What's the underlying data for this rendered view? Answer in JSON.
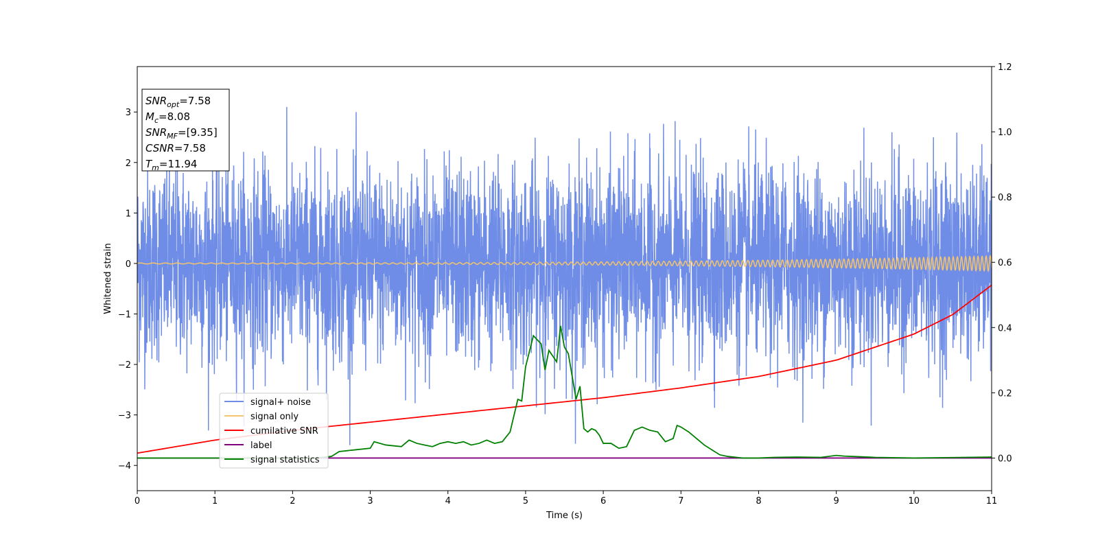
{
  "chart_data": {
    "type": "line",
    "title": "",
    "xlabel": "Time (s)",
    "ylabel": "Whitened strain",
    "xlim": [
      0,
      11
    ],
    "ylim_left": [
      -4.5,
      3.9
    ],
    "ylim_right": [
      -0.1,
      1.2
    ],
    "x_ticks": [
      "0",
      "1",
      "2",
      "3",
      "4",
      "5",
      "6",
      "7",
      "8",
      "9",
      "10",
      "11"
    ],
    "y_ticks_left": [
      "3",
      "2",
      "1",
      "0",
      "−1",
      "−2",
      "−3",
      "−4"
    ],
    "y_ticks_right": [
      "1.2",
      "1.0",
      "0.8",
      "0.6",
      "0.4",
      "0.2",
      "0.0"
    ],
    "grid": false,
    "legend_position": "lower-left",
    "info_box": {
      "lines": [
        {
          "sym": "SNR",
          "sub": "opt",
          "val": "=7.58"
        },
        {
          "sym": "M",
          "sub": "c",
          "val": "=8.08"
        },
        {
          "sym": "SNR",
          "sub": "MF",
          "val": "=[9.35]"
        },
        {
          "sym": "CSNR",
          "sub": "",
          "val": "=7.58"
        },
        {
          "sym": "T",
          "sub": "m",
          "val": "=11.94"
        }
      ]
    },
    "series": [
      {
        "name": "signal+ noise",
        "axis": "left",
        "color": "#6f8de6",
        "description": "white noise, amplitude ~±3"
      },
      {
        "name": "signal only",
        "axis": "left",
        "color": "#f5c46b",
        "description": "chirp growing from ~0.01 to ~0.15 amplitude"
      },
      {
        "name": "cumilative SNR",
        "axis": "right",
        "color": "#ff0000",
        "x": [
          0,
          1,
          2,
          3,
          4,
          5,
          6,
          7,
          8,
          9,
          10,
          10.5,
          11
        ],
        "y": [
          0.015,
          0.055,
          0.085,
          0.11,
          0.135,
          0.16,
          0.185,
          0.215,
          0.25,
          0.3,
          0.38,
          0.44,
          0.53
        ]
      },
      {
        "name": "label",
        "axis": "right",
        "color": "#800080",
        "x": [
          0,
          11
        ],
        "y": [
          0.0,
          0.0
        ]
      },
      {
        "name": "signal statistics",
        "axis": "right",
        "color": "#008000",
        "x": [
          0,
          1,
          2,
          2.3,
          2.5,
          2.6,
          2.8,
          3.0,
          3.05,
          3.2,
          3.4,
          3.5,
          3.6,
          3.7,
          3.8,
          3.9,
          4.0,
          4.1,
          4.2,
          4.3,
          4.4,
          4.5,
          4.6,
          4.7,
          4.8,
          4.9,
          4.95,
          5.0,
          5.1,
          5.2,
          5.25,
          5.3,
          5.4,
          5.45,
          5.5,
          5.55,
          5.6,
          5.65,
          5.7,
          5.75,
          5.8,
          5.85,
          5.9,
          5.95,
          6.0,
          6.1,
          6.2,
          6.3,
          6.4,
          6.5,
          6.6,
          6.7,
          6.8,
          6.9,
          6.95,
          7.0,
          7.1,
          7.2,
          7.3,
          7.4,
          7.5,
          7.6,
          7.8,
          8.0,
          8.2,
          8.5,
          8.8,
          9.0,
          9.1,
          9.2,
          9.5,
          10.0,
          11.0
        ],
        "y": [
          0.0,
          0.0,
          0.0,
          0.0,
          0.005,
          0.02,
          0.025,
          0.03,
          0.05,
          0.04,
          0.035,
          0.055,
          0.045,
          0.04,
          0.035,
          0.045,
          0.05,
          0.045,
          0.05,
          0.04,
          0.045,
          0.055,
          0.045,
          0.05,
          0.08,
          0.18,
          0.175,
          0.28,
          0.375,
          0.35,
          0.27,
          0.33,
          0.295,
          0.405,
          0.34,
          0.32,
          0.25,
          0.18,
          0.22,
          0.09,
          0.08,
          0.09,
          0.085,
          0.07,
          0.045,
          0.045,
          0.03,
          0.035,
          0.085,
          0.095,
          0.085,
          0.08,
          0.05,
          0.06,
          0.1,
          0.095,
          0.08,
          0.06,
          0.04,
          0.025,
          0.01,
          0.005,
          0.0,
          0.0,
          0.002,
          0.003,
          0.002,
          0.008,
          0.006,
          0.005,
          0.002,
          0.0,
          0.003
        ]
      }
    ]
  }
}
